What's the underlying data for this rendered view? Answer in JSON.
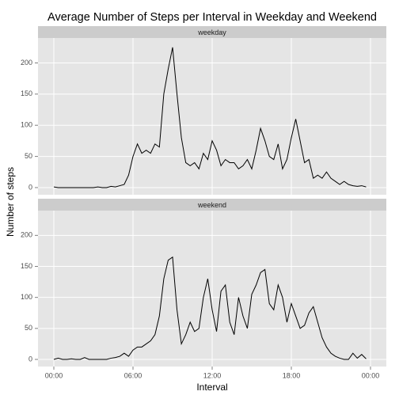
{
  "chart_data": {
    "type": "line",
    "title": "Average Number of Steps per Interval in Weekday and Weekend",
    "xlabel": "Interval",
    "ylabel": "Number of steps",
    "xlim": [
      -72,
      1512
    ],
    "xticks": [
      {
        "value": 0,
        "label": "00:00"
      },
      {
        "value": 360,
        "label": "06:00"
      },
      {
        "value": 720,
        "label": "12:00"
      },
      {
        "value": 1080,
        "label": "18:00"
      },
      {
        "value": 1440,
        "label": "00:00"
      }
    ],
    "ylim": [
      -11.5,
      240
    ],
    "yticks": [
      0,
      50,
      100,
      150,
      200
    ],
    "grid": true,
    "color": "#000000",
    "x": [
      0,
      20,
      40,
      60,
      80,
      100,
      120,
      140,
      160,
      180,
      200,
      220,
      240,
      260,
      280,
      300,
      320,
      340,
      360,
      380,
      400,
      420,
      440,
      460,
      480,
      500,
      520,
      540,
      560,
      580,
      600,
      620,
      640,
      660,
      680,
      700,
      720,
      740,
      760,
      780,
      800,
      820,
      840,
      860,
      880,
      900,
      920,
      940,
      960,
      980,
      1000,
      1020,
      1040,
      1060,
      1080,
      1100,
      1120,
      1140,
      1160,
      1180,
      1200,
      1220,
      1240,
      1260,
      1280,
      1300,
      1320,
      1340,
      1360,
      1380,
      1400,
      1420
    ],
    "panels": [
      {
        "strip": "weekday",
        "values": [
          1,
          0,
          0,
          0,
          0,
          0,
          0,
          0,
          0,
          0,
          1,
          0,
          0,
          2,
          1,
          3,
          5,
          20,
          50,
          70,
          55,
          60,
          55,
          70,
          65,
          150,
          190,
          225,
          150,
          80,
          40,
          35,
          40,
          30,
          55,
          45,
          75,
          60,
          35,
          45,
          40,
          40,
          30,
          35,
          45,
          30,
          60,
          95,
          75,
          50,
          45,
          70,
          30,
          45,
          80,
          110,
          75,
          40,
          45,
          15,
          20,
          15,
          25,
          15,
          10,
          5,
          10,
          5,
          3,
          2,
          3,
          1
        ]
      },
      {
        "strip": "weekend",
        "values": [
          0,
          2,
          0,
          0,
          1,
          0,
          0,
          3,
          0,
          0,
          0,
          0,
          0,
          2,
          3,
          5,
          10,
          5,
          15,
          20,
          20,
          25,
          30,
          40,
          70,
          130,
          160,
          165,
          80,
          25,
          40,
          60,
          45,
          50,
          100,
          130,
          80,
          45,
          110,
          120,
          60,
          40,
          100,
          70,
          50,
          105,
          120,
          140,
          145,
          90,
          80,
          120,
          100,
          60,
          90,
          70,
          50,
          55,
          75,
          85,
          60,
          35,
          20,
          10,
          5,
          2,
          0,
          0,
          10,
          2,
          8,
          1
        ]
      }
    ]
  }
}
